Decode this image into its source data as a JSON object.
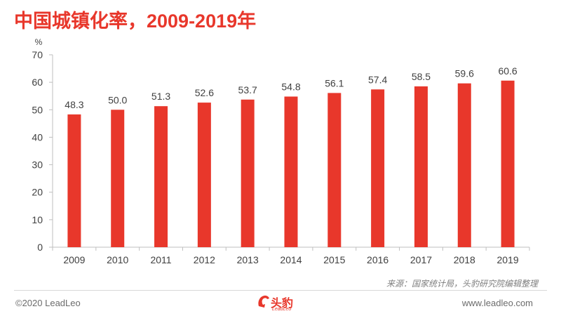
{
  "page": {
    "title": "中国城镇化率，2009-2019年",
    "source": "来源：国家统计局，头豹研究院编辑整理",
    "copyright": "©2020 LeadLeo",
    "website": "www.leadleo.com",
    "logo_cn": "头豹",
    "logo_en": "LeadLeo"
  },
  "colors": {
    "accent": "#e8372b",
    "axis": "#bfbfbf",
    "text": "#404040"
  },
  "chart_data": {
    "type": "bar",
    "categories": [
      "2009",
      "2010",
      "2011",
      "2012",
      "2013",
      "2014",
      "2015",
      "2016",
      "2017",
      "2018",
      "2019"
    ],
    "values": [
      48.3,
      50.0,
      51.3,
      52.6,
      53.7,
      54.8,
      56.1,
      57.4,
      58.5,
      59.6,
      60.6
    ],
    "labels": [
      "48.3",
      "50.0",
      "51.3",
      "52.6",
      "53.7",
      "54.8",
      "56.1",
      "57.4",
      "58.5",
      "59.6",
      "60.6"
    ],
    "yticks": [
      0,
      10,
      20,
      30,
      40,
      50,
      60,
      70
    ],
    "ylim": [
      0,
      70
    ],
    "ylabel": "%",
    "xlabel": "",
    "grid": false,
    "bar_color": "#e8372b"
  }
}
